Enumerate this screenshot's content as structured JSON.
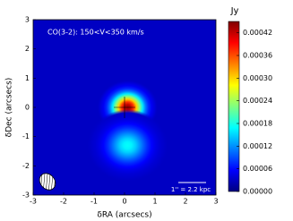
{
  "chart_data": {
    "type": "heatmap",
    "annotation": "CO(3-2):  150<V<350  km/s",
    "xlabel": "δRA (arcsecs)",
    "ylabel": "δDec (arcsecs)",
    "scale_bar": "1'' = 2.2 kpc",
    "colorbar_label": "Jy",
    "colormap": "jet",
    "xlim": [
      -3,
      3
    ],
    "ylim": [
      -3,
      3
    ],
    "xticks": [
      -3,
      -2,
      -1,
      0,
      1,
      2,
      3
    ],
    "yticks": [
      -3,
      -2,
      -1,
      0,
      1,
      2,
      3
    ],
    "clim": [
      0,
      0.00045
    ],
    "cticks": [
      {
        "value": 0,
        "label": "0.00000"
      },
      6e-05,
      0.00012,
      0.00018,
      0.00024,
      {
        "value": 0.0003,
        "label": "0.00030"
      },
      0.00036,
      0.00042
    ],
    "background": 3e-05,
    "sources": [
      {
        "x": 0.1,
        "y": 0,
        "peak": 0.00044,
        "size": 0.45
      },
      {
        "x": 0.1,
        "y": -1.3,
        "peak": 0.00017,
        "size": 0.6
      }
    ]
  }
}
